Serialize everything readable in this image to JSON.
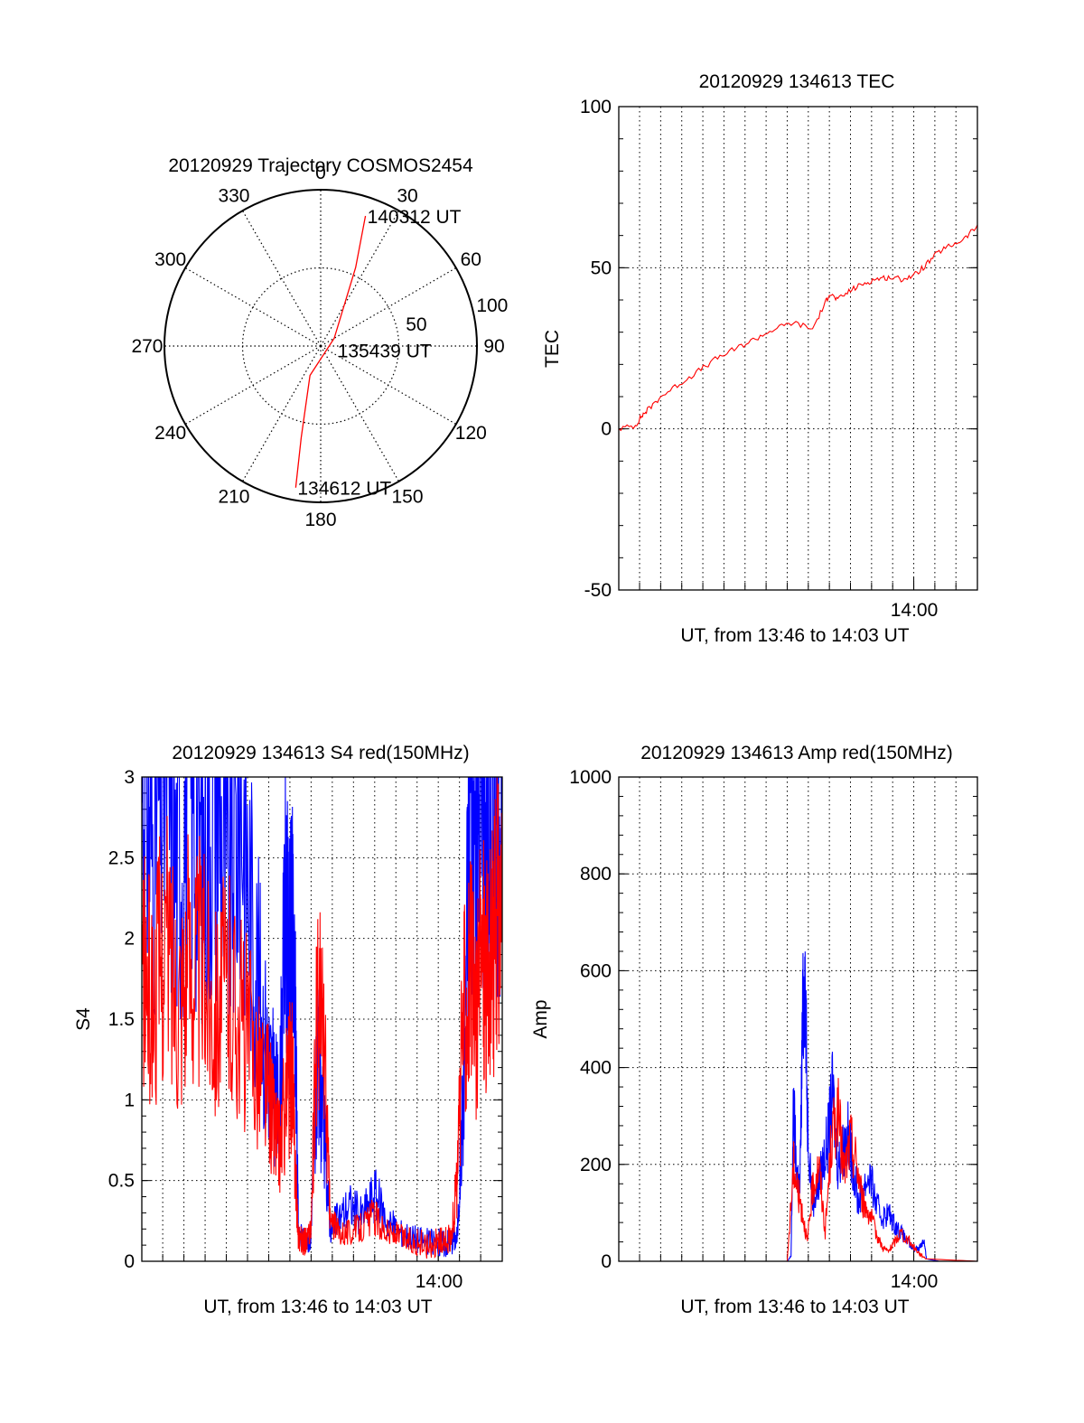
{
  "colors": {
    "red": "#ff0000",
    "blue": "#0000ff",
    "axis": "#000000",
    "grid": "#000000"
  },
  "chart_data": [
    {
      "type": "polar",
      "title": "20120929 Trajectory COSMOS2454",
      "angle_labels": [
        "0",
        "30",
        "60",
        "90",
        "120",
        "150",
        "180",
        "210",
        "240",
        "270",
        "300",
        "330"
      ],
      "angles_deg": [
        0,
        30,
        60,
        90,
        120,
        150,
        180,
        210,
        240,
        270,
        300,
        330
      ],
      "radial_ticks": [
        {
          "value": 50,
          "label": "50"
        },
        {
          "value": 100,
          "label": "100"
        }
      ],
      "rmax": 100,
      "trajectory": [
        {
          "az": 190.0,
          "r": 92.0
        },
        {
          "az": 192.0,
          "r": 60.0
        },
        {
          "az": 200.0,
          "r": 20.0
        },
        {
          "az": 60.0,
          "r": 10.0
        },
        {
          "az": 24.0,
          "r": 55.0
        },
        {
          "az": 19.0,
          "r": 88.0
        }
      ],
      "annotations": [
        {
          "text": "140312 UT",
          "az": 19.0,
          "r": 88.0
        },
        {
          "text": "135439 UT",
          "az": 105.0,
          "r": 10.0
        },
        {
          "text": "134612 UT",
          "az": 190.0,
          "r": 92.0
        }
      ]
    },
    {
      "type": "line",
      "title": "20120929 134613 TEC",
      "xlabel": "UT, from 13:46 to 14:03 UT",
      "ylabel": "TEC",
      "xlim": [
        13.7669,
        14.0503
      ],
      "ylim": [
        -50,
        100
      ],
      "yticks": [
        -50,
        0,
        50,
        100
      ],
      "xtick": {
        "value": 14.0,
        "label": "14:00"
      },
      "series": [
        {
          "color": "red",
          "x": [
            13.7669,
            13.78,
            13.785,
            13.79,
            13.8,
            13.815,
            13.83,
            13.845,
            13.86,
            13.875,
            13.89,
            13.905,
            13.92,
            13.93,
            13.9333,
            13.94,
            13.95,
            13.96,
            13.97,
            13.98,
            13.99,
            14.0,
            14.01,
            14.02,
            14.03,
            14.04,
            14.0503
          ],
          "values": [
            0,
            1,
            4,
            6,
            10,
            14,
            18,
            22,
            25,
            28,
            31,
            33,
            31,
            39,
            42,
            40,
            43,
            45,
            46.5,
            47,
            46.5,
            47.5,
            51,
            55,
            57,
            59,
            63
          ]
        }
      ]
    },
    {
      "type": "line",
      "title": "20120929 134613 S4 red(150MHz)",
      "xlabel": "UT, from 13:46 to 14:03 UT",
      "ylabel": "S4",
      "xlim": [
        13.7669,
        14.0503
      ],
      "ylim": [
        0,
        3
      ],
      "yticks": [
        0,
        0.5,
        1,
        1.5,
        2,
        2.5,
        3
      ],
      "ytick_labels": [
        "0",
        "0.5",
        "1",
        "1.5",
        "2",
        "2.5",
        "3"
      ],
      "xtick": {
        "value": 14.0,
        "label": "14:00"
      },
      "series": [
        {
          "color": "blue",
          "x": [
            13.7669,
            13.775,
            13.785,
            13.795,
            13.805,
            13.815,
            13.825,
            13.835,
            13.845,
            13.855,
            13.865,
            13.87,
            13.875,
            13.88,
            13.8825,
            13.885,
            13.888,
            13.89,
            13.895,
            13.9,
            13.905,
            13.91,
            13.915,
            13.92,
            13.93,
            13.94,
            13.95,
            13.96,
            13.97,
            13.98,
            13.99,
            14.0,
            14.005,
            14.01,
            14.015,
            14.02,
            14.025,
            14.03,
            14.035,
            14.04,
            14.045,
            14.0503
          ],
          "values": [
            3,
            2.6,
            3,
            2.4,
            3,
            2.5,
            3,
            2.2,
            2.9,
            2.0,
            1.3,
            1.1,
            0.9,
            2.2,
            1.8,
            2.0,
            1.4,
            0.18,
            0.12,
            0.15,
            1.2,
            0.8,
            0.2,
            0.25,
            0.35,
            0.28,
            0.42,
            0.25,
            0.18,
            0.15,
            0.12,
            0.12,
            0.11,
            0.13,
            0.15,
            1.1,
            3,
            2.5,
            3,
            2.4,
            3,
            2.8
          ]
        },
        {
          "color": "red",
          "x": [
            13.7669,
            13.775,
            13.785,
            13.795,
            13.805,
            13.815,
            13.825,
            13.835,
            13.845,
            13.855,
            13.865,
            13.87,
            13.875,
            13.88,
            13.885,
            13.888,
            13.89,
            13.895,
            13.9,
            13.905,
            13.91,
            13.915,
            13.92,
            13.93,
            13.94,
            13.95,
            13.96,
            13.97,
            13.98,
            13.99,
            14.0,
            14.005,
            14.01,
            14.015,
            14.02,
            14.025,
            14.03,
            14.035,
            14.04,
            14.045,
            14.0503
          ],
          "values": [
            1.8,
            1.6,
            2.0,
            1.7,
            1.9,
            1.8,
            1.6,
            1.7,
            1.5,
            1.3,
            1.1,
            0.9,
            0.7,
            1.0,
            1.2,
            0.5,
            0.15,
            0.12,
            0.2,
            1.6,
            1.4,
            0.25,
            0.2,
            0.18,
            0.22,
            0.28,
            0.18,
            0.15,
            0.12,
            0.1,
            0.12,
            0.12,
            0.15,
            0.5,
            1.6,
            1.8,
            1.5,
            2.0,
            1.7,
            2.1,
            2.3
          ]
        }
      ]
    },
    {
      "type": "line",
      "title": "20120929 134613 Amp red(150MHz)",
      "xlabel": "UT, from 13:46 to 14:03 UT",
      "ylabel": "Amp",
      "xlim": [
        13.7669,
        14.0503
      ],
      "ylim": [
        0,
        1000
      ],
      "yticks": [
        0,
        200,
        400,
        600,
        800,
        1000
      ],
      "xtick": {
        "value": 14.0,
        "label": "14:00"
      },
      "series": [
        {
          "color": "blue",
          "x": [
            13.7669,
            13.85,
            13.9,
            13.903,
            13.905,
            13.907,
            13.91,
            13.912,
            13.914,
            13.916,
            13.92,
            13.924,
            13.928,
            13.932,
            13.936,
            13.94,
            13.944,
            13.948,
            13.952,
            13.956,
            13.96,
            13.965,
            13.97,
            13.975,
            13.98,
            13.985,
            13.99,
            13.995,
            14.0,
            14.005,
            14.008,
            14.01,
            14.02,
            14.0503
          ],
          "values": [
            0,
            0,
            0,
            10,
            330,
            200,
            150,
            480,
            600,
            300,
            120,
            150,
            200,
            250,
            350,
            200,
            230,
            260,
            200,
            120,
            150,
            180,
            120,
            90,
            100,
            75,
            60,
            40,
            25,
            30,
            45,
            5,
            0,
            0
          ]
        },
        {
          "color": "red",
          "x": [
            13.7669,
            13.85,
            13.9,
            13.905,
            13.908,
            13.912,
            13.916,
            13.92,
            13.925,
            13.93,
            13.935,
            13.94,
            13.945,
            13.95,
            13.955,
            13.96,
            13.965,
            13.97,
            13.975,
            13.98,
            13.985,
            13.99,
            14.0,
            14.005,
            14.01,
            14.0503
          ],
          "values": [
            0,
            0,
            0,
            200,
            150,
            100,
            40,
            150,
            200,
            60,
            250,
            310,
            180,
            250,
            200,
            120,
            100,
            60,
            30,
            20,
            40,
            60,
            30,
            15,
            5,
            0
          ]
        }
      ]
    }
  ]
}
